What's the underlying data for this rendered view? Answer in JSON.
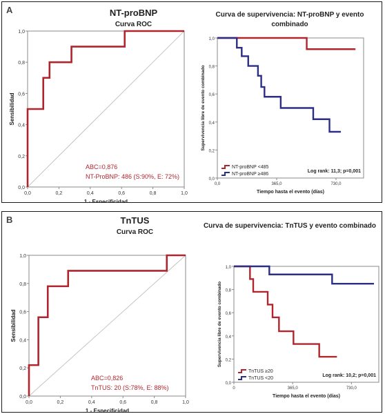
{
  "panels": [
    {
      "label": "A",
      "roc": {
        "title": "NT-proBNP",
        "subtitle": "Curva ROC",
        "xlabel": "1 - Especificidad",
        "ylabel": "Sensibilidad",
        "ticks": [
          "0,0",
          "0,2",
          "0,4",
          "0,6",
          "0,8",
          "1,0"
        ],
        "annotation1": "ABC=0,876",
        "annotation2": "NT-ProBNP: 486 (S:90%, E: 72%)"
      },
      "km": {
        "title": "Curva de supervivencia: NT-proBNP y evento",
        "title2": "combinado",
        "xlabel": "Tiempo hasta el evento (días)",
        "ylabel": "Supervivencia libre de evento combinado",
        "xticks": [
          "0,0",
          "365,0",
          "730,0"
        ],
        "yticks": [
          "0,0",
          "0,2",
          "0,4",
          "0,6",
          "0,8",
          "1,0"
        ],
        "legend": [
          "NT-proBNP <485",
          "NT-proBNP ≥486"
        ],
        "stat": "Log rank: 11,3; p=0,001"
      }
    },
    {
      "label": "B",
      "roc": {
        "title": "TnTUS",
        "subtitle": "Curva ROC",
        "xlabel": "1 - Especificidad",
        "ylabel": "Sensibilidad",
        "ticks": [
          "0,0",
          "0,2",
          "0,4",
          "0,6",
          "0,8",
          "1,0"
        ],
        "annotation1": "ABC=0,826",
        "annotation2": "TnTUS: 20 (S:78%, E: 88%)"
      },
      "km": {
        "title": "Curva de supervivencia: TnTUS y evento combinado",
        "title2": "",
        "xlabel": "Tiempo hasta el evento (días)",
        "ylabel": "Supervivencia libre de evento combinado",
        "xticks": [
          "0",
          "365,0",
          "730,0"
        ],
        "yticks": [
          "0,0",
          "0,2",
          "0,4",
          "0,6",
          "0,8",
          "1,0"
        ],
        "legend": [
          "TnTUS ≥20",
          "TnTUS <20"
        ],
        "stat": "Log rank: 10,2; p=0,001"
      }
    }
  ],
  "colors": {
    "red": "#b0252d",
    "blue": "#2b2d86",
    "frame": "#888888"
  },
  "chart_data": [
    {
      "type": "line",
      "title": "NT-proBNP",
      "subtitle": "Curva ROC",
      "xlabel": "1 - Especificidad",
      "ylabel": "Sensibilidad",
      "xlim": [
        0,
        1
      ],
      "ylim": [
        0,
        1
      ],
      "series": [
        {
          "x": [
            0,
            0,
            0.1,
            0.1,
            0.14,
            0.14,
            0.28,
            0.28,
            0.62,
            0.62,
            1.0
          ],
          "y": [
            0,
            0.5,
            0.5,
            0.7,
            0.7,
            0.8,
            0.8,
            0.9,
            0.9,
            1.0,
            1.0
          ]
        }
      ],
      "annotations": [
        "ABC=0,876",
        "NT-ProBNP: 486 (S:90%, E: 72%)"
      ]
    },
    {
      "type": "line",
      "title": "Curva de supervivencia: NT-proBNP y evento combinado",
      "xlabel": "Tiempo hasta el evento (días)",
      "ylabel": "Supervivencia libre de evento combinado",
      "xlim": [
        0,
        900
      ],
      "ylim": [
        0,
        1
      ],
      "series": [
        {
          "name": "NT-proBNP <485",
          "x": [
            0,
            550,
            550,
            850
          ],
          "y": [
            1.0,
            1.0,
            0.92,
            0.92
          ]
        },
        {
          "name": "NT-proBNP ≥486",
          "x": [
            0,
            120,
            120,
            150,
            150,
            190,
            190,
            250,
            250,
            270,
            270,
            290,
            290,
            390,
            390,
            590,
            590,
            690,
            690,
            760
          ],
          "y": [
            1.0,
            1.0,
            0.93,
            0.93,
            0.87,
            0.87,
            0.8,
            0.8,
            0.73,
            0.73,
            0.65,
            0.65,
            0.58,
            0.58,
            0.5,
            0.5,
            0.42,
            0.42,
            0.33,
            0.33
          ]
        }
      ],
      "annotations": [
        "Log rank: 11,3; p=0,001"
      ]
    },
    {
      "type": "line",
      "title": "TnTUS",
      "subtitle": "Curva ROC",
      "xlabel": "1 - Especificidad",
      "ylabel": "Sensibilidad",
      "xlim": [
        0,
        1
      ],
      "ylim": [
        0,
        1
      ],
      "series": [
        {
          "x": [
            0,
            0,
            0.06,
            0.06,
            0.12,
            0.12,
            0.25,
            0.25,
            0.88,
            0.88,
            1.0
          ],
          "y": [
            0,
            0.22,
            0.22,
            0.56,
            0.56,
            0.78,
            0.78,
            0.89,
            0.89,
            1.0,
            1.0
          ]
        }
      ],
      "annotations": [
        "ABC=0,826",
        "TnTUS: 20 (S:78%, E: 88%)"
      ]
    },
    {
      "type": "line",
      "title": "Curva de supervivencia: TnTUS y evento combinado",
      "xlabel": "Tiempo hasta el evento (días)",
      "ylabel": "Supervivencia libre de evento combinado",
      "xlim": [
        0,
        900
      ],
      "ylim": [
        0,
        1
      ],
      "series": [
        {
          "name": "TnTUS ≥20",
          "x": [
            0,
            100,
            100,
            120,
            120,
            210,
            210,
            240,
            240,
            280,
            280,
            370,
            370,
            530,
            530,
            630,
            630,
            640
          ],
          "y": [
            1.0,
            1.0,
            0.89,
            0.89,
            0.78,
            0.78,
            0.67,
            0.67,
            0.56,
            0.56,
            0.44,
            0.44,
            0.33,
            0.33,
            0.22,
            0.22,
            0.22,
            0.22
          ]
        },
        {
          "name": "TnTUS <20",
          "x": [
            0,
            220,
            220,
            610,
            610,
            870
          ],
          "y": [
            1.0,
            1.0,
            0.93,
            0.93,
            0.85,
            0.85
          ]
        }
      ],
      "annotations": [
        "Log rank: 10,2; p=0,001"
      ]
    }
  ]
}
